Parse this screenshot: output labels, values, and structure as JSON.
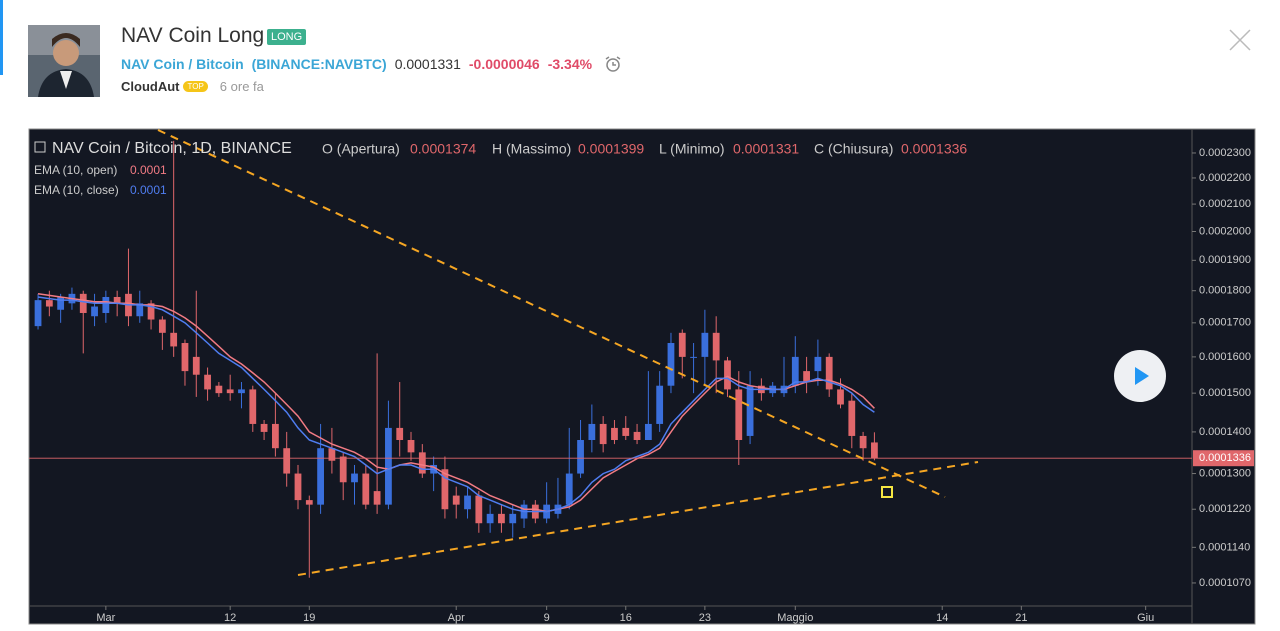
{
  "header": {
    "title": "NAV Coin Long",
    "badge": "LONG",
    "symbol_name": "NAV Coin / Bitcoin",
    "symbol_code": "(BINANCE:NAVBTC)",
    "price": "0.0001331",
    "change": "-0.0000046",
    "change_pct": "-3.34%",
    "author": "CloudAut",
    "author_badge": "TOP",
    "time": "6 ore fa"
  },
  "chart_data": {
    "type": "candlestick",
    "title": "NAV Coin / Bitcoin, 1D, BINANCE",
    "ohlc_labels": {
      "open": "O (Apertura)",
      "high": "H (Massimo)",
      "low": "L (Minimo)",
      "close": "C (Chiusura)"
    },
    "up_color": "#3a6fdc",
    "down_color": "#e0676b",
    "log_scale": true,
    "grid": false,
    "x": [
      -6,
      -5,
      -4,
      -3,
      -2,
      -1,
      0,
      1,
      2,
      3,
      4,
      5,
      6,
      7,
      8,
      9,
      10,
      11,
      12,
      13,
      14,
      15,
      16,
      17,
      18,
      19,
      20,
      21,
      22,
      23,
      24,
      25,
      26,
      27,
      28,
      29,
      30,
      31,
      32,
      33,
      34,
      35,
      36,
      37,
      38,
      39,
      40,
      41,
      42,
      43,
      44,
      45,
      46,
      47,
      48,
      49,
      50,
      51,
      52,
      53,
      54,
      55,
      56,
      57,
      58,
      59,
      60,
      61,
      62,
      63,
      64,
      65,
      66,
      67,
      68
    ],
    "open": [
      0.000169,
      0.000177,
      0.000174,
      0.000176,
      0.000179,
      0.000172,
      0.000173,
      0.000178,
      0.000179,
      0.000172,
      0.000176,
      0.000171,
      0.000167,
      0.000164,
      0.00016,
      0.000155,
      0.000152,
      0.000151,
      0.00015,
      0.000151,
      0.000142,
      0.000142,
      0.000136,
      0.00013,
      0.000124,
      0.000123,
      0.000136,
      0.000134,
      0.000128,
      0.00013,
      0.000126,
      0.000123,
      0.000141,
      0.000138,
      0.000135,
      0.00013,
      0.000131,
      0.000125,
      0.000122,
      0.000125,
      0.000119,
      0.000121,
      0.000119,
      0.00012,
      0.000123,
      0.00012,
      0.000121,
      0.000123,
      0.00013,
      0.000138,
      0.000142,
      0.000141,
      0.000141,
      0.00014,
      0.000138,
      0.000142,
      0.000152,
      0.000167,
      0.00016,
      0.00016,
      0.000167,
      0.000159,
      0.000151,
      0.000139,
      0.000152,
      0.00015,
      0.00015,
      0.000152,
      0.000156,
      0.000156,
      0.00016,
      0.000151,
      0.000148,
      0.000139,
      0.0001374
    ],
    "high": [
      0.000179,
      0.00018,
      0.000179,
      0.000181,
      0.00018,
      0.000179,
      0.00018,
      0.00018,
      0.000194,
      0.00018,
      0.000177,
      0.000172,
      0.000235,
      0.000165,
      0.00018,
      0.000157,
      0.000153,
      0.000155,
      0.000153,
      0.000152,
      0.000143,
      0.00015,
      0.00014,
      0.000132,
      0.000125,
      0.000142,
      0.000141,
      0.000135,
      0.000132,
      0.000132,
      0.000161,
      0.000148,
      0.000153,
      0.00014,
      0.000137,
      0.000134,
      0.000134,
      0.000127,
      0.000127,
      0.000126,
      0.000123,
      0.000123,
      0.000123,
      0.000124,
      0.000124,
      0.000128,
      0.000129,
      0.000141,
      0.000143,
      0.000147,
      0.000144,
      0.000143,
      0.000144,
      0.000142,
      0.000156,
      0.000156,
      0.000167,
      0.000168,
      0.000164,
      0.000174,
      0.000172,
      0.00016,
      0.000156,
      0.000156,
      0.000154,
      0.000153,
      0.00016,
      0.000166,
      0.00016,
      0.000165,
      0.000161,
      0.000154,
      0.00015,
      0.00014,
      0.0001399
    ],
    "low": [
      0.000168,
      0.000172,
      0.00017,
      0.000174,
      0.000161,
      0.000169,
      0.00017,
      0.000172,
      0.000169,
      0.00017,
      0.000168,
      0.000162,
      0.00016,
      0.000152,
      0.000149,
      0.000148,
      0.000149,
      0.000148,
      0.000146,
      0.00014,
      0.000138,
      0.000134,
      0.000127,
      0.000122,
      0.000108,
      0.000121,
      0.00013,
      0.000124,
      0.000123,
      0.000122,
      0.000121,
      0.000122,
      0.000134,
      0.000133,
      0.000129,
      0.000126,
      0.00012,
      0.00012,
      0.00012,
      0.000117,
      0.000117,
      0.000117,
      0.000116,
      0.000118,
      0.000119,
      0.000119,
      0.00012,
      0.000122,
      0.000129,
      0.000135,
      0.000135,
      0.000137,
      0.000138,
      0.000137,
      0.000138,
      0.00014,
      0.00015,
      0.000154,
      0.00015,
      0.000152,
      0.00015,
      0.000149,
      0.000132,
      0.000137,
      0.000148,
      0.000149,
      0.000149,
      0.00015,
      0.00015,
      0.000152,
      0.000149,
      0.000146,
      0.000136,
      0.000133,
      0.0001331
    ],
    "close": [
      0.000177,
      0.000175,
      0.000178,
      0.000179,
      0.000173,
      0.000175,
      0.000178,
      0.000176,
      0.000172,
      0.000176,
      0.000171,
      0.000167,
      0.000163,
      0.000156,
      0.000155,
      0.000151,
      0.00015,
      0.00015,
      0.000151,
      0.000142,
      0.00014,
      0.000136,
      0.00013,
      0.000124,
      0.000123,
      0.000136,
      0.000133,
      0.000128,
      0.00013,
      0.000123,
      0.000123,
      0.000141,
      0.000138,
      0.000135,
      0.00013,
      0.000132,
      0.000122,
      0.000123,
      0.000125,
      0.000119,
      0.000121,
      0.000119,
      0.000121,
      0.000123,
      0.00012,
      0.000123,
      0.000123,
      0.00013,
      0.000138,
      0.000142,
      0.000137,
      0.000138,
      0.000139,
      0.000138,
      0.000142,
      0.000152,
      0.000164,
      0.00016,
      0.00016,
      0.000167,
      0.000159,
      0.000151,
      0.000138,
      0.000152,
      0.00015,
      0.000152,
      0.000152,
      0.00016,
      0.000153,
      0.00016,
      0.000151,
      0.000147,
      0.000139,
      0.000136,
      0.0001336
    ],
    "series": [
      {
        "name": "EMA (10, open)",
        "color": "#f27b84",
        "value_label": "0.0001",
        "values": [
          0.000179,
          0.0001785,
          0.000178,
          0.0001775,
          0.000177,
          0.0001765,
          0.0001765,
          0.000176,
          0.000176,
          0.0001755,
          0.0001755,
          0.000175,
          0.0001735,
          0.0001715,
          0.000169,
          0.000166,
          0.000163,
          0.00016,
          0.000158,
          0.0001555,
          0.000153,
          0.00015,
          0.000147,
          0.000144,
          0.00014,
          0.0001385,
          0.000137,
          0.000136,
          0.000135,
          0.0001335,
          0.0001315,
          0.000131,
          0.000132,
          0.0001325,
          0.000132,
          0.0001315,
          0.00013,
          0.000129,
          0.000128,
          0.0001265,
          0.000125,
          0.000124,
          0.000123,
          0.000122,
          0.000122,
          0.0001215,
          0.000122,
          0.0001225,
          0.000124,
          0.0001265,
          0.000129,
          0.0001305,
          0.000132,
          0.0001335,
          0.0001345,
          0.000136,
          0.00014,
          0.000144,
          0.000147,
          0.00015,
          0.000153,
          0.0001545,
          0.000153,
          0.000152,
          0.0001515,
          0.000151,
          0.000151,
          0.000152,
          0.000153,
          0.0001535,
          0.0001535,
          0.0001525,
          0.000151,
          0.000149,
          0.000146
        ]
      },
      {
        "name": "EMA (10, close)",
        "color": "#4f7df0",
        "value_label": "0.0001",
        "values": [
          0.000178,
          0.0001775,
          0.000177,
          0.000177,
          0.0001765,
          0.000176,
          0.000176,
          0.000176,
          0.0001755,
          0.0001755,
          0.000175,
          0.000174,
          0.000172,
          0.00017,
          0.000167,
          0.000164,
          0.000161,
          0.000159,
          0.000157,
          0.000154,
          0.000151,
          0.000148,
          0.000145,
          0.000141,
          0.000138,
          0.000137,
          0.000136,
          0.000135,
          0.000134,
          0.000132,
          0.00013,
          0.000131,
          0.000132,
          0.000132,
          0.000131,
          0.000131,
          0.000129,
          0.000128,
          0.000127,
          0.000125,
          0.000124,
          0.000123,
          0.000122,
          0.0001215,
          0.0001215,
          0.0001215,
          0.000122,
          0.000123,
          0.000125,
          0.000128,
          0.00013,
          0.000131,
          0.000133,
          0.000134,
          0.000135,
          0.000137,
          0.000142,
          0.000145,
          0.000148,
          0.000151,
          0.000154,
          0.000154,
          0.000152,
          0.000151,
          0.000151,
          0.000151,
          0.000151,
          0.000153,
          0.000153,
          0.000154,
          0.000153,
          0.000152,
          0.00015,
          0.000147,
          0.000145
        ]
      }
    ],
    "xlim": [
      -6.8,
      96.1
    ],
    "xticks": [
      {
        "value": 0,
        "label": "Mar"
      },
      {
        "value": 11,
        "label": "12"
      },
      {
        "value": 18,
        "label": "19"
      },
      {
        "value": 31,
        "label": "Apr"
      },
      {
        "value": 39,
        "label": "9"
      },
      {
        "value": 46,
        "label": "16"
      },
      {
        "value": 53,
        "label": "23"
      },
      {
        "value": 61,
        "label": "Maggio"
      },
      {
        "value": 74,
        "label": "14"
      },
      {
        "value": 81,
        "label": "21"
      },
      {
        "value": 92,
        "label": "Giu"
      }
    ],
    "ylim": [
      0.0001027,
      0.0002396
    ],
    "yticks": [
      {
        "value": 0.00023,
        "label": "0.0002300"
      },
      {
        "value": 0.00022,
        "label": "0.0002200"
      },
      {
        "value": 0.00021,
        "label": "0.0002100"
      },
      {
        "value": 0.0002,
        "label": "0.0002000"
      },
      {
        "value": 0.00019,
        "label": "0.0001900"
      },
      {
        "value": 0.00018,
        "label": "0.0001800"
      },
      {
        "value": 0.00017,
        "label": "0.0001700"
      },
      {
        "value": 0.00016,
        "label": "0.0001600"
      },
      {
        "value": 0.00015,
        "label": "0.0001500"
      },
      {
        "value": 0.00014,
        "label": "0.0001400"
      },
      {
        "value": 0.00013,
        "label": "0.0001300"
      },
      {
        "value": 0.000122,
        "label": "0.0001220"
      },
      {
        "value": 0.000114,
        "label": "0.0001140"
      },
      {
        "value": 0.000107,
        "label": "0.0001070"
      }
    ]
  }
}
